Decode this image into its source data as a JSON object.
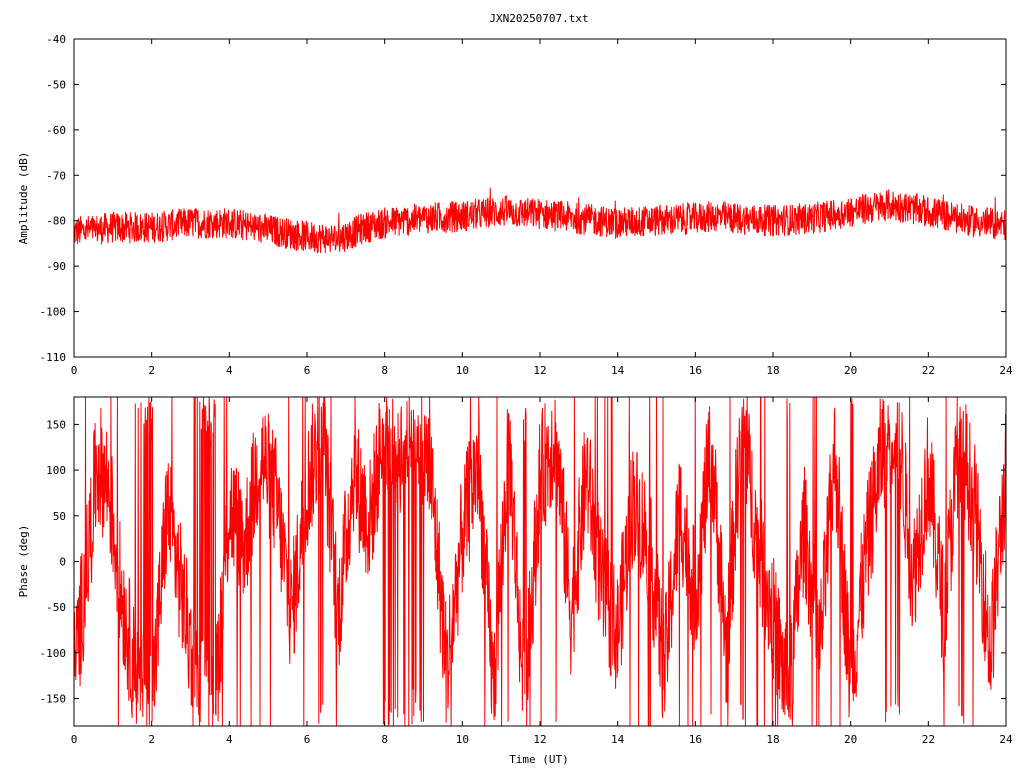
{
  "title": "JXN20250707.txt",
  "colors": {
    "series": "#ff0000",
    "axes": "#000000",
    "grid": "#a0a0a0"
  },
  "chart_data": [
    {
      "type": "line",
      "name": "amplitude-panel",
      "ylabel": "Amplitude (dB)",
      "xlabel": "",
      "xlim": [
        0,
        24
      ],
      "ylim": [
        -110,
        -40
      ],
      "xticks": [
        0,
        2,
        4,
        6,
        8,
        10,
        12,
        14,
        16,
        18,
        20,
        22,
        24
      ],
      "yticks": [
        -40,
        -50,
        -60,
        -70,
        -80,
        -90,
        -100,
        -110
      ],
      "xtick_labels": [
        "0",
        "2",
        "4",
        "6",
        "8",
        "10",
        "12",
        "14",
        "16",
        "18",
        "20",
        "22",
        "24"
      ],
      "ytick_labels": [
        "-40",
        "-50",
        "-60",
        "-70",
        "-80",
        "-90",
        "-100",
        "-110"
      ],
      "grid": false,
      "series": [
        {
          "x": [
            0,
            1,
            2,
            3,
            4,
            5,
            6,
            6.8,
            7.5,
            8,
            9,
            10,
            11,
            12,
            13,
            14,
            15,
            16,
            16.5,
            17,
            18,
            19,
            20,
            21,
            22,
            23,
            24
          ],
          "y": [
            -82.5,
            -81.5,
            -81.5,
            -80.5,
            -80.5,
            -82,
            -83.5,
            -84,
            -81.5,
            -80.5,
            -79.5,
            -79,
            -78,
            -78.5,
            -79.5,
            -80.5,
            -80,
            -79.5,
            -79,
            -79.5,
            -80,
            -79.5,
            -78,
            -76.5,
            -78,
            -80,
            -81
          ],
          "noise_band": 3.5
        }
      ]
    },
    {
      "type": "line",
      "name": "phase-panel",
      "ylabel": "Phase (deg)",
      "xlabel": "Time (UT)",
      "xlim": [
        0,
        24
      ],
      "ylim": [
        -180,
        180
      ],
      "xticks": [
        0,
        2,
        4,
        6,
        8,
        10,
        12,
        14,
        16,
        18,
        20,
        22,
        24
      ],
      "yticks": [
        150,
        100,
        50,
        0,
        -50,
        -100,
        -150
      ],
      "xtick_labels": [
        "0",
        "2",
        "4",
        "6",
        "8",
        "10",
        "12",
        "14",
        "16",
        "18",
        "20",
        "22",
        "24"
      ],
      "ytick_labels": [
        "150",
        "100",
        "50",
        "0",
        "-50",
        "-100",
        "-150"
      ],
      "grid": false,
      "series": [
        {
          "x": [
            0,
            0.3,
            0.6,
            0.9,
            1.2,
            1.6,
            2.0,
            2.4,
            2.8,
            3.2,
            3.6,
            4.0,
            4.4,
            4.8,
            5.2,
            5.6,
            6.0,
            6.4,
            6.8,
            7.2,
            7.6,
            8.0,
            8.4,
            8.8,
            9.2,
            9.6,
            10.0,
            10.4,
            10.8,
            11.2,
            11.6,
            12.0,
            12.4,
            12.8,
            13.2,
            13.6,
            14.0,
            14.4,
            14.8,
            15.2,
            15.6,
            16.0,
            16.4,
            16.8,
            17.2,
            17.6,
            18.0,
            18.4,
            18.8,
            19.2,
            19.6,
            20.0,
            20.4,
            20.8,
            21.2,
            21.6,
            22.0,
            22.4,
            22.8,
            23.2,
            23.6,
            24.0
          ],
          "y": [
            -120,
            -20,
            110,
            80,
            -30,
            -130,
            -160,
            60,
            -40,
            -140,
            -170,
            60,
            20,
            120,
            70,
            -60,
            80,
            150,
            -60,
            100,
            40,
            150,
            120,
            160,
            90,
            -120,
            30,
            110,
            -140,
            130,
            -160,
            90,
            140,
            -60,
            100,
            -30,
            -80,
            70,
            20,
            -120,
            60,
            -40,
            130,
            -100,
            160,
            20,
            -60,
            -150,
            40,
            -100,
            120,
            -140,
            10,
            120,
            160,
            -20,
            100,
            -60,
            140,
            60,
            -100,
            100
          ],
          "noise_band": 70
        }
      ]
    }
  ]
}
